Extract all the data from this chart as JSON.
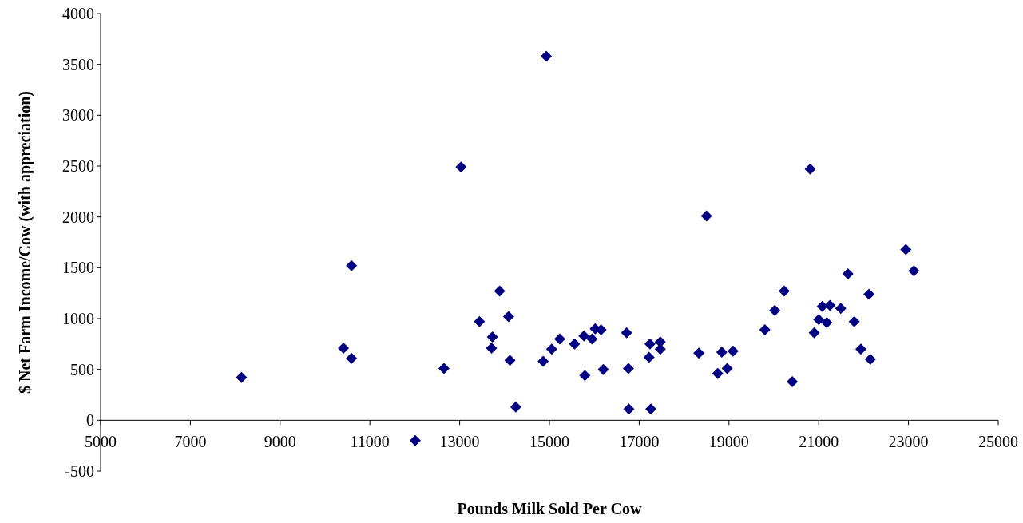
{
  "chart_data": {
    "type": "scatter",
    "xlabel": "Pounds Milk Sold Per Cow",
    "ylabel": "$ Net Farm Income/Cow (with appreciation)",
    "xlim": [
      5000,
      25000
    ],
    "xticks": [
      5000,
      7000,
      9000,
      11000,
      13000,
      15000,
      17000,
      19000,
      21000,
      23000,
      25000
    ],
    "ylim": [
      -500,
      4000
    ],
    "yticks": [
      -500,
      0,
      500,
      1000,
      1500,
      2000,
      2500,
      3000,
      3500,
      4000
    ],
    "marker": "diamond",
    "grid": false,
    "series": [
      {
        "color": "#000080",
        "x": [
          8140,
          10410,
          10590,
          10590,
          12010,
          12650,
          13030,
          13440,
          13710,
          13730,
          13890,
          14090,
          14120,
          14250,
          14860,
          14930,
          15050,
          15230,
          15560,
          15790,
          15770,
          15950,
          16020,
          16150,
          16200,
          16720,
          16760,
          16770,
          17220,
          17240,
          17260,
          17470,
          17470,
          18330,
          18840,
          19090,
          18750,
          18960,
          19800,
          20020,
          20230,
          20410,
          20900,
          21000,
          21080,
          21180,
          21250,
          21490,
          21650,
          21790,
          21940,
          22120,
          22150,
          23120,
          22940,
          18500,
          20810
        ],
        "values": [
          420,
          710,
          610,
          1520,
          -200,
          510,
          2490,
          970,
          710,
          820,
          1270,
          1020,
          590,
          130,
          580,
          3580,
          700,
          800,
          750,
          440,
          830,
          800,
          900,
          890,
          500,
          860,
          510,
          110,
          620,
          750,
          110,
          770,
          700,
          660,
          670,
          680,
          460,
          510,
          890,
          1080,
          1270,
          380,
          860,
          990,
          1120,
          960,
          1130,
          1100,
          1440,
          970,
          700,
          1240,
          600,
          1470,
          1680,
          2010,
          2470
        ]
      }
    ]
  }
}
